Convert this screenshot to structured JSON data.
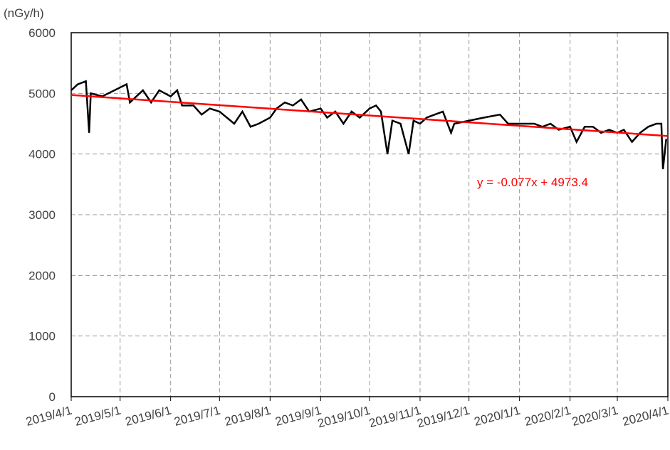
{
  "chart_data": {
    "type": "line",
    "y_label": "(nGy/h)",
    "x": [
      "2019/4/1",
      "2019/4/5",
      "2019/4/10",
      "2019/4/12",
      "2019/4/13",
      "2019/4/20",
      "2019/5/5",
      "2019/5/7",
      "2019/5/15",
      "2019/5/20",
      "2019/5/25",
      "2019/6/1",
      "2019/6/5",
      "2019/6/8",
      "2019/6/15",
      "2019/6/20",
      "2019/6/25",
      "2019/7/1",
      "2019/7/10",
      "2019/7/15",
      "2019/7/20",
      "2019/7/25",
      "2019/8/1",
      "2019/8/5",
      "2019/8/10",
      "2019/8/15",
      "2019/8/20",
      "2019/8/25",
      "2019/9/1",
      "2019/9/5",
      "2019/9/10",
      "2019/9/15",
      "2019/9/20",
      "2019/9/25",
      "2019/10/1",
      "2019/10/5",
      "2019/10/8",
      "2019/10/12",
      "2019/10/15",
      "2019/10/20",
      "2019/10/25",
      "2019/10/28",
      "2019/11/1",
      "2019/11/5",
      "2019/11/10",
      "2019/11/15",
      "2019/11/20",
      "2019/11/22",
      "2019/12/1",
      "2019/12/10",
      "2019/12/20",
      "2019/12/25",
      "2020/1/1",
      "2020/1/10",
      "2020/1/15",
      "2020/1/20",
      "2020/1/25",
      "2020/2/1",
      "2020/2/5",
      "2020/2/10",
      "2020/2/15",
      "2020/2/20",
      "2020/2/25",
      "2020/3/1",
      "2020/3/5",
      "2020/3/10",
      "2020/3/15",
      "2020/3/20",
      "2020/3/25",
      "2020/3/28",
      "2020/3/29",
      "2020/3/31"
    ],
    "series": [
      {
        "color": "#000000",
        "values": [
          5050,
          5150,
          5200,
          4350,
          5000,
          4950,
          5150,
          4850,
          5050,
          4850,
          5050,
          4950,
          5050,
          4800,
          4800,
          4650,
          4750,
          4700,
          4500,
          4700,
          4450,
          4500,
          4600,
          4750,
          4850,
          4800,
          4900,
          4700,
          4750,
          4600,
          4700,
          4500,
          4700,
          4600,
          4750,
          4800,
          4700,
          4000,
          4550,
          4500,
          4000,
          4550,
          4500,
          4600,
          4650,
          4700,
          4350,
          4500,
          4550,
          4600,
          4650,
          4500,
          4500,
          4500,
          4450,
          4500,
          4400,
          4450,
          4200,
          4450,
          4450,
          4350,
          4400,
          4350,
          4400,
          4200,
          4350,
          4450,
          4500,
          4500,
          3750,
          4250
        ]
      }
    ],
    "trendline": {
      "color": "#ff0000",
      "x": [
        "2019/4/1",
        "2020/4/1"
      ],
      "values": [
        4973.4,
        4297
      ]
    },
    "annotation": "y = -0.077x + 4973.4",
    "xlim": [
      "2019/4/1",
      "2020/4/1"
    ],
    "xticks": [
      "2019/4/1",
      "2019/5/1",
      "2019/6/1",
      "2019/7/1",
      "2019/8/1",
      "2019/9/1",
      "2019/10/1",
      "2019/11/1",
      "2019/12/1",
      "2020/1/1",
      "2020/2/1",
      "2020/3/1",
      "2020/4/1"
    ],
    "ylim": [
      0,
      6000
    ],
    "yticks": [
      0,
      1000,
      2000,
      3000,
      4000,
      5000,
      6000
    ],
    "grid": true
  }
}
